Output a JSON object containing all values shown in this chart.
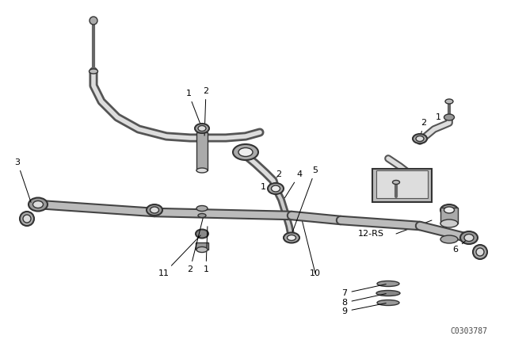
{
  "bg_color": "#ffffff",
  "line_color": "#000000",
  "part_color": "#888888",
  "watermark": "C0303787",
  "figsize": [
    6.4,
    4.48
  ],
  "dpi": 100
}
